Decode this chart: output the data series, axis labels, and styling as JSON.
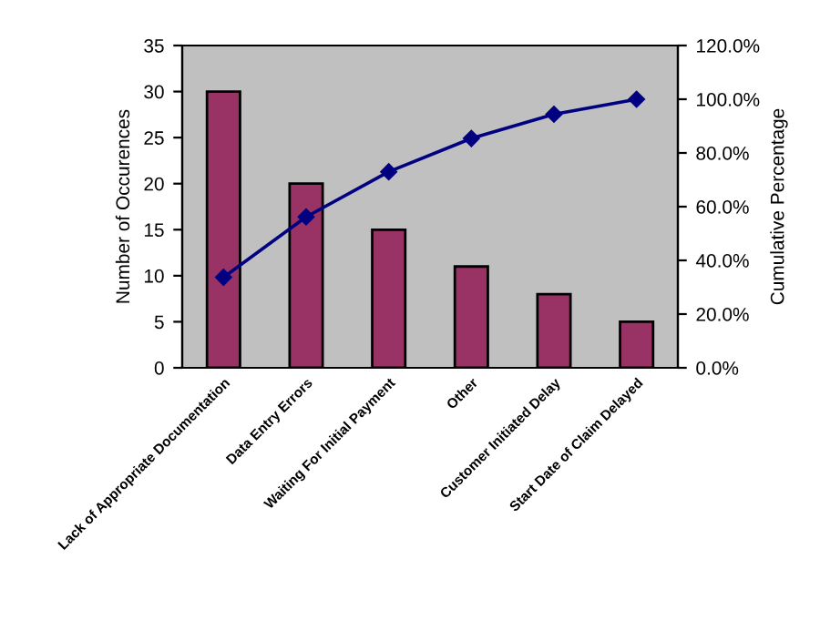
{
  "chart_data": {
    "type": "bar",
    "categories": [
      "Lack of Appropriate Documentation",
      "Data Entry Errors",
      "Waiting For Initial Payment",
      "Other",
      "Customer Initiated Delay",
      "Start Date of Claim Delayed"
    ],
    "ylabel": "Number of Occurences",
    "y2label": "Cumulative Percentage",
    "series": [
      {
        "color": "#993366",
        "values": [
          30,
          20,
          15,
          11,
          8,
          5
        ]
      },
      {
        "type": "line",
        "axis": "y2",
        "color": "#000080",
        "marker": "diamond",
        "values": [
          33.7,
          56.2,
          73.0,
          85.4,
          94.4,
          100.0
        ]
      }
    ],
    "ylim": [
      0,
      35
    ],
    "yticks": [
      0,
      5,
      10,
      15,
      20,
      25,
      30,
      35
    ],
    "y2lim": [
      0,
      120
    ],
    "y2ticks": [
      {
        "value": 0,
        "label": "0.0%"
      },
      {
        "value": 20,
        "label": "20.0%"
      },
      {
        "value": 40,
        "label": "40.0%"
      },
      {
        "value": 60,
        "label": "60.0%"
      },
      {
        "value": 80,
        "label": "80.0%"
      },
      {
        "value": 100,
        "label": "100.0%"
      },
      {
        "value": 120,
        "label": "120.0%"
      }
    ],
    "grid": false,
    "legend": false
  }
}
